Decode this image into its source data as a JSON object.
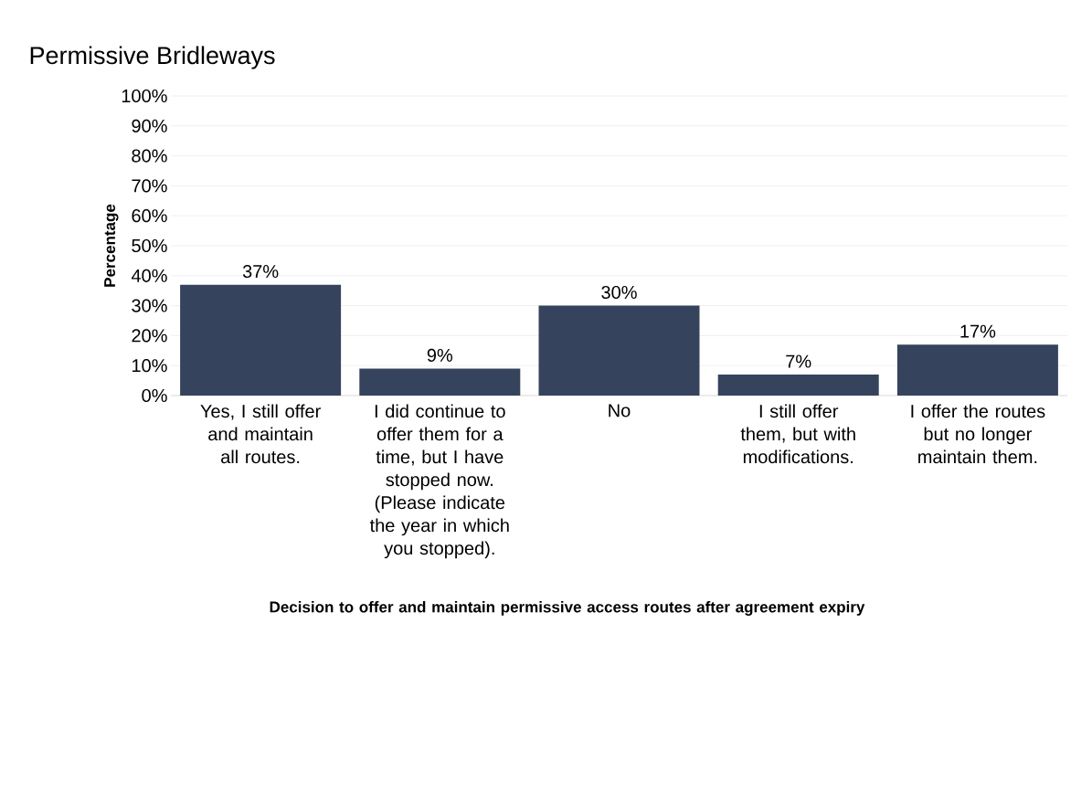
{
  "chart_data": {
    "type": "bar",
    "title": "Permissive Bridleways",
    "xlabel": "Decision to offer and maintain permissive access routes after agreement expiry",
    "ylabel": "Percentage",
    "categories": [
      "Yes, I still offer and maintain all routes.",
      "I did continue to offer them for a time, but I have stopped now. (Please indicate the year in which you stopped).",
      "No",
      "I still offer them, but with modifications.",
      "I offer the routes but no longer maintain them."
    ],
    "values": [
      37,
      9,
      30,
      7,
      17
    ],
    "value_labels": [
      "37%",
      "9%",
      "30%",
      "7%",
      "17%"
    ],
    "color": "#36435d",
    "ylim": [
      0,
      100
    ],
    "yticks": [
      {
        "value": 0,
        "label": "0%"
      },
      {
        "value": 10,
        "label": "10%"
      },
      {
        "value": 20,
        "label": "20%"
      },
      {
        "value": 30,
        "label": "30%"
      },
      {
        "value": 40,
        "label": "40%"
      },
      {
        "value": 50,
        "label": "50%"
      },
      {
        "value": 60,
        "label": "60%"
      },
      {
        "value": 70,
        "label": "70%"
      },
      {
        "value": 80,
        "label": "80%"
      },
      {
        "value": 90,
        "label": "90%"
      },
      {
        "value": 100,
        "label": "100%"
      }
    ],
    "grid": "y"
  }
}
